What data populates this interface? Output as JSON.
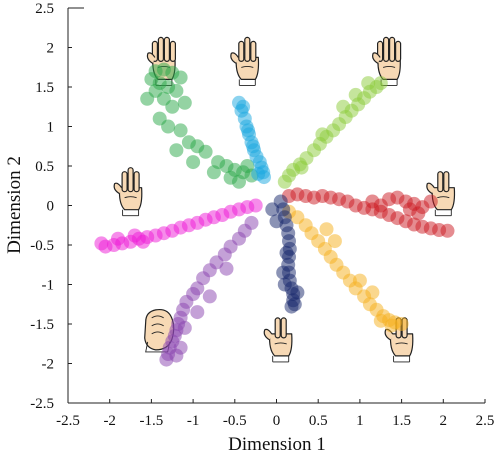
{
  "chart_data": {
    "type": "scatter",
    "title": "",
    "xlabel": "Dimension 1",
    "ylabel": "Dimension 2",
    "xlim": [
      -2.5,
      2.5
    ],
    "ylim": [
      -2.5,
      2.5
    ],
    "xticks": [
      "-2.5",
      "-2",
      "-1.5",
      "-1",
      "-0.5",
      "0",
      "0.5",
      "1",
      "1.5",
      "2",
      "2.5"
    ],
    "yticks": [
      "-2.5",
      "-2",
      "-1.5",
      "-1",
      "-0.5",
      "0",
      "0.5",
      "1",
      "1.5",
      "2",
      "2.5"
    ],
    "grid": false,
    "legend": "none",
    "series": [
      {
        "color": "#2aa748",
        "icon": "hand-four-fingers-icon",
        "icon_pos": [
          -1.35,
          1.85
        ],
        "points": [
          [
            -1.45,
            1.7
          ],
          [
            -1.35,
            1.72
          ],
          [
            -1.25,
            1.68
          ],
          [
            -1.15,
            1.62
          ],
          [
            -1.5,
            1.6
          ],
          [
            -1.4,
            1.55
          ],
          [
            -1.3,
            1.5
          ],
          [
            -1.2,
            1.45
          ],
          [
            -1.45,
            1.45
          ],
          [
            -1.35,
            1.35
          ],
          [
            -1.25,
            1.25
          ],
          [
            -1.1,
            1.3
          ],
          [
            -1.4,
            1.1
          ],
          [
            -1.3,
            1.0
          ],
          [
            -1.15,
            0.95
          ],
          [
            -1.05,
            0.8
          ],
          [
            -0.95,
            0.75
          ],
          [
            -0.85,
            0.68
          ],
          [
            -1.2,
            0.7
          ],
          [
            -0.7,
            0.55
          ],
          [
            -0.6,
            0.5
          ],
          [
            -0.5,
            0.45
          ],
          [
            -0.4,
            0.42
          ],
          [
            -0.3,
            0.38
          ],
          [
            -0.55,
            0.35
          ],
          [
            -0.45,
            0.3
          ],
          [
            -0.75,
            0.42
          ],
          [
            -1.55,
            1.35
          ],
          [
            -1.0,
            0.55
          ],
          [
            -0.35,
            0.5
          ]
        ]
      },
      {
        "color": "#1aa8e0",
        "icon": "hand-three-fingers-icon",
        "icon_pos": [
          -0.35,
          1.85
        ],
        "points": [
          [
            -0.45,
            1.3
          ],
          [
            -0.42,
            1.2
          ],
          [
            -0.38,
            1.1
          ],
          [
            -0.36,
            1.0
          ],
          [
            -0.33,
            0.9
          ],
          [
            -0.3,
            0.8
          ],
          [
            -0.27,
            0.7
          ],
          [
            -0.24,
            0.62
          ],
          [
            -0.2,
            0.55
          ],
          [
            -0.18,
            0.48
          ],
          [
            -0.16,
            0.42
          ],
          [
            -0.22,
            0.4
          ],
          [
            -0.4,
            1.25
          ],
          [
            -0.34,
            0.95
          ],
          [
            -0.28,
            0.75
          ],
          [
            -0.15,
            0.36
          ]
        ]
      },
      {
        "color": "#8ccc3a",
        "icon": "hand-open-palm-icon",
        "icon_pos": [
          1.35,
          1.85
        ],
        "points": [
          [
            0.1,
            0.3
          ],
          [
            0.15,
            0.38
          ],
          [
            0.2,
            0.45
          ],
          [
            0.28,
            0.52
          ],
          [
            0.36,
            0.6
          ],
          [
            0.45,
            0.7
          ],
          [
            0.52,
            0.78
          ],
          [
            0.6,
            0.87
          ],
          [
            0.68,
            0.95
          ],
          [
            0.75,
            1.03
          ],
          [
            0.83,
            1.12
          ],
          [
            0.9,
            1.2
          ],
          [
            0.98,
            1.28
          ],
          [
            1.05,
            1.36
          ],
          [
            1.12,
            1.44
          ],
          [
            1.2,
            1.5
          ],
          [
            1.1,
            1.55
          ],
          [
            0.95,
            1.4
          ],
          [
            0.8,
            1.25
          ],
          [
            0.55,
            0.9
          ],
          [
            0.3,
            0.48
          ],
          [
            1.25,
            1.55
          ]
        ]
      },
      {
        "color": "#cc1a22",
        "icon": "hand-peace-sign-icon",
        "icon_pos": [
          2.0,
          0.2
        ],
        "points": [
          [
            0.15,
            0.12
          ],
          [
            0.25,
            0.14
          ],
          [
            0.35,
            0.12
          ],
          [
            0.45,
            0.1
          ],
          [
            0.55,
            0.12
          ],
          [
            0.65,
            0.1
          ],
          [
            0.75,
            0.08
          ],
          [
            0.85,
            0.05
          ],
          [
            0.95,
            0.0
          ],
          [
            1.05,
            -0.03
          ],
          [
            1.15,
            -0.05
          ],
          [
            1.25,
            -0.08
          ],
          [
            1.35,
            -0.12
          ],
          [
            1.45,
            -0.16
          ],
          [
            1.55,
            -0.2
          ],
          [
            1.65,
            -0.24
          ],
          [
            1.75,
            -0.27
          ],
          [
            1.85,
            -0.29
          ],
          [
            1.95,
            -0.31
          ],
          [
            2.05,
            -0.32
          ],
          [
            1.45,
            0.1
          ],
          [
            1.55,
            0.05
          ],
          [
            1.65,
            0.02
          ],
          [
            1.75,
            -0.02
          ],
          [
            1.85,
            0.05
          ],
          [
            1.35,
            0.08
          ],
          [
            1.25,
            0.0
          ],
          [
            1.7,
            -0.1
          ],
          [
            1.6,
            -0.05
          ],
          [
            1.15,
            0.05
          ]
        ]
      },
      {
        "color": "#f5b01c",
        "icon": "hand-two-fingers-icon",
        "icon_pos": [
          1.5,
          -1.65
        ],
        "points": [
          [
            0.15,
            -0.08
          ],
          [
            0.25,
            -0.15
          ],
          [
            0.35,
            -0.25
          ],
          [
            0.42,
            -0.35
          ],
          [
            0.5,
            -0.45
          ],
          [
            0.58,
            -0.55
          ],
          [
            0.65,
            -0.65
          ],
          [
            0.72,
            -0.75
          ],
          [
            0.8,
            -0.85
          ],
          [
            0.88,
            -0.95
          ],
          [
            0.95,
            -1.05
          ],
          [
            1.05,
            -1.15
          ],
          [
            1.12,
            -1.25
          ],
          [
            1.2,
            -1.32
          ],
          [
            1.28,
            -1.4
          ],
          [
            1.35,
            -1.45
          ],
          [
            1.42,
            -1.48
          ],
          [
            1.5,
            -1.5
          ],
          [
            1.38,
            -1.52
          ],
          [
            1.25,
            -1.46
          ],
          [
            0.7,
            -0.45
          ],
          [
            0.6,
            -0.3
          ],
          [
            1.0,
            -0.95
          ],
          [
            1.15,
            -1.1
          ]
        ]
      },
      {
        "color": "#17286b",
        "icon": "hand-index-middle-icon",
        "icon_pos": [
          0.05,
          -1.65
        ],
        "points": [
          [
            0.05,
            0.05
          ],
          [
            0.08,
            -0.05
          ],
          [
            0.1,
            -0.15
          ],
          [
            0.12,
            -0.25
          ],
          [
            0.14,
            -0.35
          ],
          [
            0.15,
            -0.45
          ],
          [
            0.16,
            -0.55
          ],
          [
            0.15,
            -0.65
          ],
          [
            0.14,
            -0.75
          ],
          [
            0.15,
            -0.85
          ],
          [
            0.16,
            -0.95
          ],
          [
            0.18,
            -1.05
          ],
          [
            0.2,
            -1.12
          ],
          [
            0.2,
            -1.2
          ],
          [
            0.18,
            -1.28
          ],
          [
            0.22,
            -1.25
          ],
          [
            0.1,
            -1.0
          ],
          [
            0.12,
            -0.6
          ],
          [
            -0.05,
            -0.05
          ],
          [
            0.0,
            -0.2
          ],
          [
            0.25,
            -1.1
          ],
          [
            0.08,
            -0.85
          ]
        ]
      },
      {
        "color": "#8a44b0",
        "icon": "hand-fist-icon",
        "icon_pos": [
          -1.4,
          -1.55
        ],
        "points": [
          [
            -0.3,
            -0.22
          ],
          [
            -0.38,
            -0.32
          ],
          [
            -0.45,
            -0.42
          ],
          [
            -0.55,
            -0.52
          ],
          [
            -0.62,
            -0.62
          ],
          [
            -0.72,
            -0.72
          ],
          [
            -0.8,
            -0.82
          ],
          [
            -0.88,
            -0.92
          ],
          [
            -0.95,
            -1.05
          ],
          [
            -1.0,
            -1.12
          ],
          [
            -1.08,
            -1.22
          ],
          [
            -1.12,
            -1.32
          ],
          [
            -1.15,
            -1.42
          ],
          [
            -1.18,
            -1.5
          ],
          [
            -1.2,
            -1.58
          ],
          [
            -1.22,
            -1.65
          ],
          [
            -1.25,
            -1.72
          ],
          [
            -1.28,
            -1.8
          ],
          [
            -1.3,
            -1.88
          ],
          [
            -1.32,
            -1.95
          ],
          [
            -1.2,
            -1.9
          ],
          [
            -1.15,
            -1.8
          ],
          [
            -0.8,
            -1.15
          ],
          [
            -0.95,
            -1.35
          ],
          [
            -1.1,
            -1.55
          ],
          [
            -0.6,
            -0.8
          ]
        ]
      },
      {
        "color": "#ee1ad5",
        "icon": "hand-three-fingers-alt-icon",
        "icon_pos": [
          -1.75,
          0.2
        ],
        "points": [
          [
            -2.05,
            -0.52
          ],
          [
            -1.95,
            -0.5
          ],
          [
            -1.85,
            -0.48
          ],
          [
            -1.75,
            -0.46
          ],
          [
            -1.65,
            -0.42
          ],
          [
            -1.55,
            -0.4
          ],
          [
            -1.45,
            -0.38
          ],
          [
            -1.35,
            -0.35
          ],
          [
            -1.25,
            -0.32
          ],
          [
            -1.15,
            -0.28
          ],
          [
            -1.05,
            -0.25
          ],
          [
            -0.95,
            -0.22
          ],
          [
            -0.85,
            -0.18
          ],
          [
            -0.75,
            -0.15
          ],
          [
            -0.65,
            -0.12
          ],
          [
            -0.55,
            -0.08
          ],
          [
            -0.45,
            -0.05
          ],
          [
            -0.35,
            -0.02
          ],
          [
            -0.25,
            0.0
          ],
          [
            -2.1,
            -0.48
          ],
          [
            -1.9,
            -0.42
          ],
          [
            -1.7,
            -0.38
          ],
          [
            -1.6,
            -0.46
          ]
        ]
      }
    ]
  }
}
